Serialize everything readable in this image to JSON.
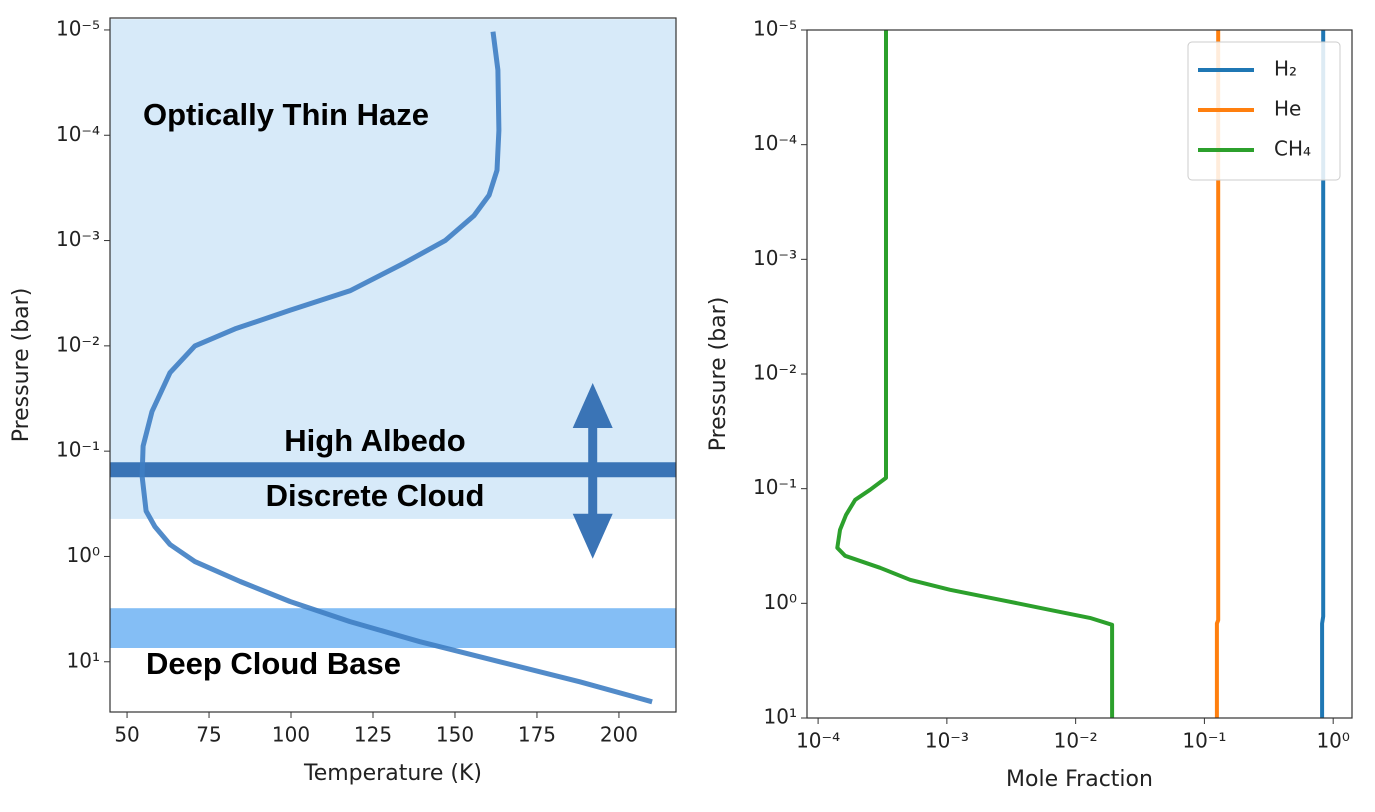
{
  "chart_data": [
    {
      "type": "line",
      "xlabel": "Temperature (K)",
      "ylabel": "Pressure (bar)",
      "xlim": [
        44.8,
        217.4
      ],
      "xticks": [
        50,
        75,
        100,
        125,
        150,
        175,
        200
      ],
      "ylim": [
        30,
        7.7e-06
      ],
      "yscale": "log",
      "yticks": [
        {
          "value": 1e-05,
          "label": "10⁻⁵"
        },
        {
          "value": 0.0001,
          "label": "10⁻⁴"
        },
        {
          "value": 0.001,
          "label": "10⁻³"
        },
        {
          "value": 0.01,
          "label": "10⁻²"
        },
        {
          "value": 0.1,
          "label": "10⁻¹"
        },
        {
          "value": 1,
          "label": "10⁰"
        },
        {
          "value": 10,
          "label": "10¹"
        }
      ],
      "x": [
        161.6,
        163.1,
        163.4,
        162.8,
        160.4,
        155.8,
        147.0,
        134.8,
        118.0,
        99.7,
        82.9,
        70.7,
        63.1,
        57.6,
        54.9,
        54.6,
        55.8,
        58.5,
        63.1,
        70.7,
        84.5,
        99.7,
        118.0,
        139.3,
        163.7,
        188.1,
        210.1
      ],
      "series": [
        {
          "color": "#3f7ec3",
          "values": [
            1.04e-05,
            2.4e-05,
            9e-05,
            0.000215,
            0.00037,
            0.00058,
            0.001,
            0.00162,
            0.003,
            0.0046,
            0.0069,
            0.01,
            0.018,
            0.042,
            0.0895,
            0.173,
            0.37,
            0.52,
            0.77,
            1.12,
            1.73,
            2.68,
            4.16,
            6.45,
            10,
            15.5,
            24
          ]
        }
      ],
      "haze_range": [
        0.44,
        7.9e-06
      ],
      "haze_color": "#d7eaf9",
      "deep_cloud_range": [
        3.1,
        7.4
      ],
      "deep_cloud_color": "#84bef5",
      "cloud_level": 0.15,
      "cloud_color": "#3a74b6",
      "arrow_x": 192,
      "arrow_range": [
        1.05,
        0.0225
      ],
      "annotations": [
        "Optically Thin Haze",
        "High Albedo",
        "Discrete Cloud",
        "Deep Cloud Base"
      ]
    },
    {
      "type": "line",
      "xlabel": "Mole Fraction",
      "ylabel": "Pressure (bar)",
      "xlim": [
        8.2e-05,
        1.4
      ],
      "xscale": "log",
      "xticks": [
        {
          "value": 0.0001,
          "label": "10⁻⁴"
        },
        {
          "value": 0.001,
          "label": "10⁻³"
        },
        {
          "value": 0.01,
          "label": "10⁻²"
        },
        {
          "value": 0.1,
          "label": "10⁻¹"
        },
        {
          "value": 1,
          "label": "10⁰"
        }
      ],
      "ylim": [
        10,
        1e-05
      ],
      "yscale": "log",
      "yticks": [
        {
          "value": 1e-05,
          "label": "10⁻⁵"
        },
        {
          "value": 0.0001,
          "label": "10⁻⁴"
        },
        {
          "value": 0.001,
          "label": "10⁻³"
        },
        {
          "value": 0.01,
          "label": "10⁻²"
        },
        {
          "value": 0.1,
          "label": "10⁻¹"
        },
        {
          "value": 1,
          "label": "10⁰"
        },
        {
          "value": 10,
          "label": "10¹"
        }
      ],
      "legend": "upper right",
      "series": [
        {
          "name": "H₂",
          "color": "#1f77b4",
          "x": [
            0.836,
            0.836,
            0.82,
            0.82
          ],
          "values": [
            1e-05,
            1.3,
            1.5,
            10
          ]
        },
        {
          "name": "He",
          "color": "#ff7f0e",
          "x": [
            0.128,
            0.128,
            0.125,
            0.125
          ],
          "values": [
            1e-05,
            1.4,
            1.5,
            10
          ]
        },
        {
          "name": "CH₄",
          "color": "#2ca02c",
          "x": [
            0.000337,
            0.000337,
            0.000254,
            0.000194,
            0.000165,
            0.000148,
            0.000141,
            0.000162,
            0.000303,
            0.000518,
            0.00106,
            0.00259,
            0.00633,
            0.0129,
            0.0192,
            0.0192
          ],
          "values": [
            1e-05,
            0.0805,
            0.102,
            0.125,
            0.169,
            0.229,
            0.328,
            0.385,
            0.49,
            0.624,
            0.762,
            0.931,
            1.14,
            1.34,
            1.54,
            10
          ]
        }
      ]
    }
  ]
}
